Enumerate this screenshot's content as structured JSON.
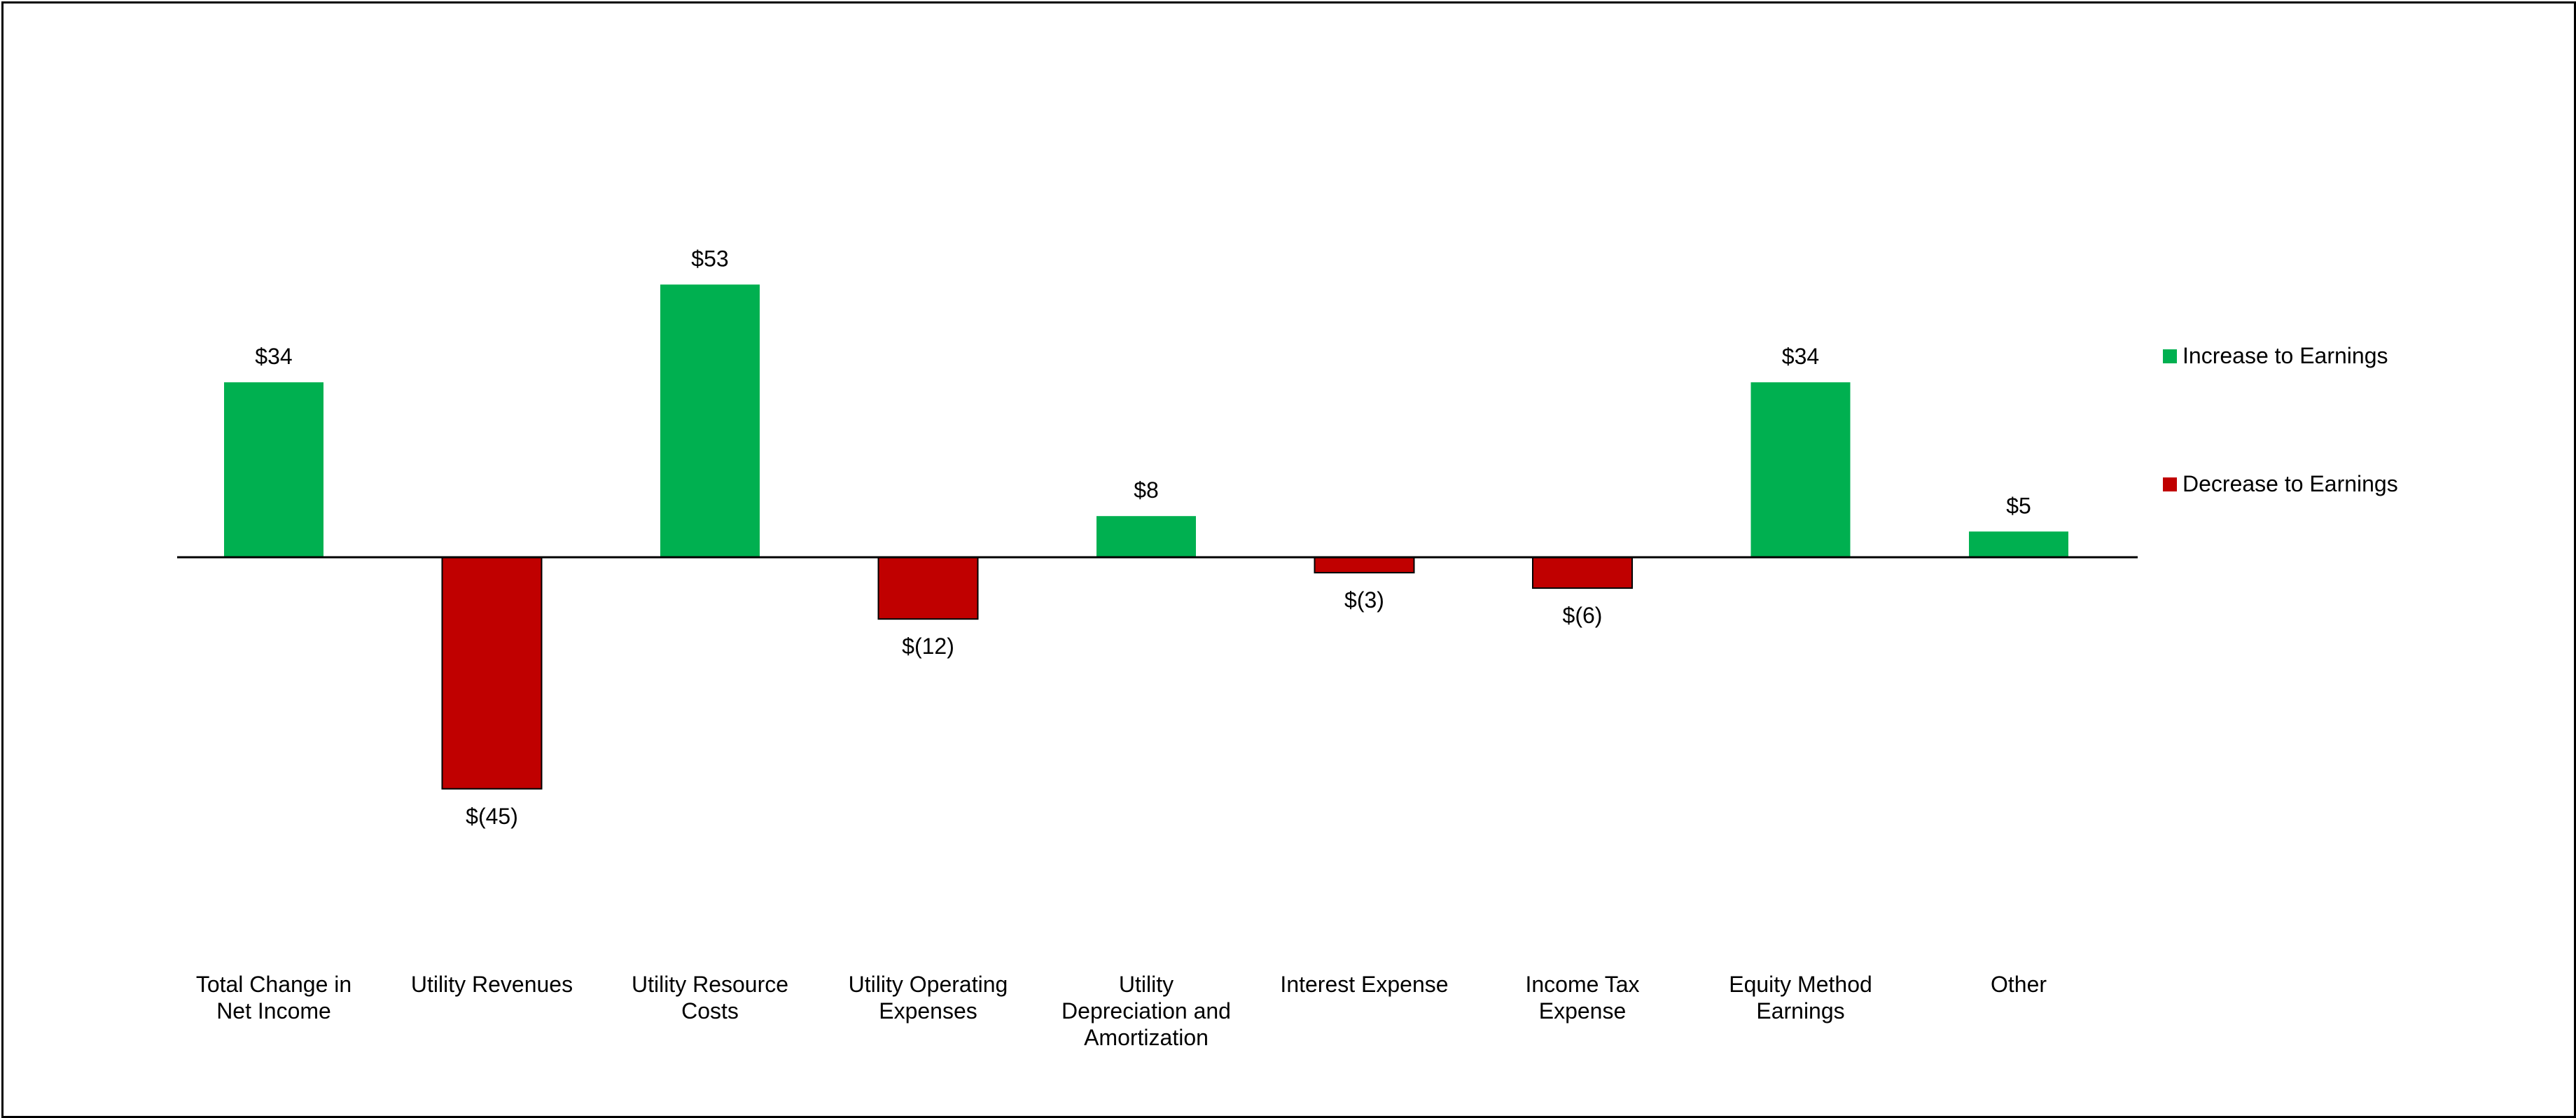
{
  "chart_data": {
    "type": "bar",
    "categories": [
      [
        "Total Change in",
        "Net Income"
      ],
      [
        "Utility Revenues"
      ],
      [
        "Utility Resource",
        "Costs"
      ],
      [
        "Utility Operating",
        "Expenses"
      ],
      [
        "Utility",
        "Depreciation and",
        "Amortization"
      ],
      [
        "Interest Expense"
      ],
      [
        "Income Tax",
        "Expense"
      ],
      [
        "Equity Method",
        "Earnings"
      ],
      [
        "Other"
      ]
    ],
    "values": [
      34,
      -45,
      53,
      -12,
      8,
      -3,
      -6,
      34,
      5
    ],
    "data_labels": [
      "$34",
      "$(45)",
      "$53",
      "$(12)",
      "$8",
      "$(3)",
      "$(6)",
      "$34",
      "$5"
    ],
    "series": [
      {
        "name": "Increase to Earnings",
        "color": "#00B050"
      },
      {
        "name": "Decrease to Earnings",
        "color": "#C00000"
      }
    ],
    "legend": {
      "increase_label": "Increase to Earnings",
      "decrease_label": "Decrease to Earnings",
      "placement": "right"
    },
    "ylim": [
      -45,
      53
    ],
    "grid": false,
    "title": "",
    "xlabel": "",
    "ylabel": ""
  }
}
